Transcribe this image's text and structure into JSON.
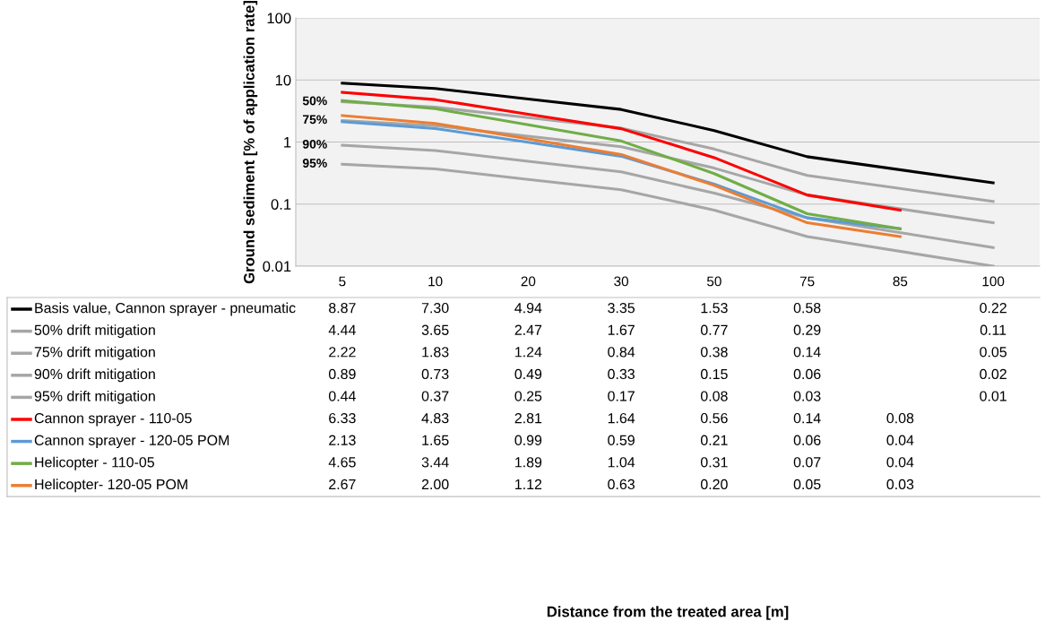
{
  "chart_data": {
    "type": "line",
    "ylabel": "Ground sediment [% of application rate]",
    "categories": [
      "5",
      "10",
      "20",
      "30",
      "50",
      "75",
      "85",
      "100"
    ],
    "log": "y",
    "ylim": [
      0.01,
      100
    ],
    "yticks": [
      {
        "value": 0.01,
        "label": "0.01"
      },
      {
        "value": 0.1,
        "label": "0.1"
      },
      {
        "value": 1,
        "label": "1"
      },
      {
        "value": 10,
        "label": "10"
      },
      {
        "value": 100,
        "label": "100"
      }
    ],
    "grid": "y",
    "legend": "bottom",
    "line_style": "solid",
    "marker": "none",
    "series": [
      {
        "name": "Basis value, Cannon sprayer - pneumatic",
        "color": "#000000",
        "values": [
          8.87,
          7.3,
          4.94,
          3.35,
          1.53,
          0.58,
          null,
          0.22
        ],
        "value_labels": [
          "8.87",
          "7.30",
          "4.94",
          "3.35",
          "1.53",
          "0.58",
          null,
          "0.22"
        ]
      },
      {
        "name": "50% drift mitigation",
        "color": "#a6a6a6",
        "values": [
          4.44,
          3.65,
          2.47,
          1.67,
          0.77,
          0.29,
          null,
          0.11
        ],
        "value_labels": [
          "4.44",
          "3.65",
          "2.47",
          "1.67",
          "0.77",
          "0.29",
          null,
          "0.11"
        ]
      },
      {
        "name": "75% drift mitigation",
        "color": "#a6a6a6",
        "values": [
          2.22,
          1.83,
          1.24,
          0.84,
          0.38,
          0.14,
          null,
          0.05
        ],
        "value_labels": [
          "2.22",
          "1.83",
          "1.24",
          "0.84",
          "0.38",
          "0.14",
          null,
          "0.05"
        ]
      },
      {
        "name": "90% drift mitigation",
        "color": "#a6a6a6",
        "values": [
          0.89,
          0.73,
          0.49,
          0.33,
          0.15,
          0.06,
          null,
          0.02
        ],
        "value_labels": [
          "0.89",
          "0.73",
          "0.49",
          "0.33",
          "0.15",
          "0.06",
          null,
          "0.02"
        ]
      },
      {
        "name": "95% drift mitigation",
        "color": "#a6a6a6",
        "values": [
          0.44,
          0.37,
          0.25,
          0.17,
          0.08,
          0.03,
          null,
          0.01
        ],
        "value_labels": [
          "0.44",
          "0.37",
          "0.25",
          "0.17",
          "0.08",
          "0.03",
          null,
          "0.01"
        ]
      },
      {
        "name": "Cannon sprayer - 110-05",
        "color": "#ff0000",
        "values": [
          6.33,
          4.83,
          2.81,
          1.64,
          0.56,
          0.14,
          0.08,
          null
        ],
        "value_labels": [
          "6.33",
          "4.83",
          "2.81",
          "1.64",
          "0.56",
          "0.14",
          "0.08",
          null
        ]
      },
      {
        "name": "Cannon sprayer - 120-05 POM",
        "color": "#5b9bd5",
        "values": [
          2.13,
          1.65,
          0.99,
          0.59,
          0.21,
          0.06,
          0.04,
          null
        ],
        "value_labels": [
          "2.13",
          "1.65",
          "0.99",
          "0.59",
          "0.21",
          "0.06",
          "0.04",
          null
        ]
      },
      {
        "name": "Helicopter - 110-05",
        "color": "#70ad47",
        "values": [
          4.65,
          3.44,
          1.89,
          1.04,
          0.31,
          0.07,
          0.04,
          null
        ],
        "value_labels": [
          "4.65",
          "3.44",
          "1.89",
          "1.04",
          "0.31",
          "0.07",
          "0.04",
          null
        ]
      },
      {
        "name": "Helicopter- 120-05 POM",
        "color": "#ed7d31",
        "values": [
          2.67,
          2.0,
          1.12,
          0.63,
          0.2,
          0.05,
          0.03,
          null
        ],
        "value_labels": [
          "2.67",
          "2.00",
          "1.12",
          "0.63",
          "0.20",
          "0.05",
          "0.03",
          null
        ]
      }
    ],
    "annotations": [
      {
        "text": "50%",
        "x": "5",
        "y": 4.44
      },
      {
        "text": "75%",
        "x": "5",
        "y": 2.22
      },
      {
        "text": "90%",
        "x": "5",
        "y": 0.89
      },
      {
        "text": "95%",
        "x": "5",
        "y": 0.44
      },
      "Distance from the treated area [m]"
    ]
  }
}
